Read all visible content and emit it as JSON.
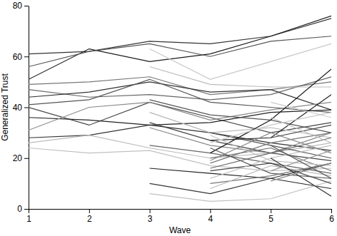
{
  "chart_data": {
    "type": "line",
    "x_label": "Wave",
    "y_label": "Generalized Trust",
    "x": [
      1,
      2,
      3,
      4,
      5,
      6
    ],
    "xlim": [
      1,
      6
    ],
    "xticks": [
      1,
      2,
      3,
      4,
      5,
      6
    ],
    "ylim": [
      0,
      80
    ],
    "yticks": [
      0,
      20,
      40,
      60,
      80
    ],
    "grid": false,
    "series": [
      {
        "color": "#333333",
        "values": [
          61,
          62,
          66,
          65,
          68,
          75
        ]
      },
      {
        "color": "#1a1a1a",
        "values": [
          51,
          63,
          58,
          61,
          68,
          76
        ]
      },
      {
        "color": "#555555",
        "values": [
          56,
          62,
          65,
          60,
          66,
          68
        ]
      },
      {
        "color": "#777777",
        "values": [
          49,
          50,
          52,
          45,
          47,
          50
        ]
      },
      {
        "color": "#666666",
        "values": [
          47,
          44,
          45,
          43,
          45,
          52
        ]
      },
      {
        "color": "#333333",
        "values": [
          44,
          46,
          50,
          46,
          47,
          39
        ]
      },
      {
        "color": "#555555",
        "values": [
          41,
          43,
          51,
          42,
          40,
          38
        ]
      },
      {
        "color": "#444444",
        "values": [
          40,
          33,
          42,
          36,
          30,
          34
        ]
      },
      {
        "color": "#222222",
        "values": [
          36,
          35,
          33,
          34,
          38,
          39
        ]
      },
      {
        "color": "#888888",
        "values": [
          31,
          40,
          42,
          35,
          39,
          42
        ]
      },
      {
        "color": "#333333",
        "values": [
          28,
          29,
          33,
          30,
          26,
          23
        ]
      },
      {
        "color": "#bbbbbb",
        "values": [
          26,
          29,
          24,
          20,
          22,
          26
        ]
      },
      {
        "color": "#c0c0c0",
        "values": [
          24,
          22,
          23,
          17,
          15,
          16
        ]
      },
      {
        "color": "#c8c8c8",
        "values": [
          null,
          null,
          63,
          51,
          58,
          65
        ]
      },
      {
        "color": "#bbbbbb",
        "values": [
          null,
          null,
          56,
          49,
          48,
          48
        ]
      },
      {
        "color": "#555555",
        "values": [
          null,
          null,
          43,
          37,
          35,
          30
        ]
      },
      {
        "color": "#b5b5b5",
        "values": [
          null,
          null,
          38,
          30,
          32,
          28
        ]
      },
      {
        "color": "#444444",
        "values": [
          null,
          null,
          34,
          27,
          22,
          19
        ]
      },
      {
        "color": "#666666",
        "values": [
          null,
          null,
          25,
          22,
          18,
          14
        ]
      },
      {
        "color": "#222222",
        "values": [
          null,
          null,
          16,
          14,
          12,
          8
        ]
      },
      {
        "color": "#333333",
        "values": [
          null,
          null,
          10,
          6,
          12,
          18
        ]
      },
      {
        "color": "#c0c0c0",
        "values": [
          null,
          null,
          6,
          3,
          4,
          11
        ]
      },
      {
        "color": "#888888",
        "values": [
          null,
          null,
          32,
          25,
          22,
          30
        ]
      },
      {
        "color": "#555555",
        "values": [
          null,
          null,
          null,
          30,
          25,
          20
        ]
      },
      {
        "color": "#222222",
        "values": [
          null,
          null,
          null,
          27,
          28,
          45
        ]
      },
      {
        "color": "#1a1a1a",
        "values": [
          null,
          null,
          null,
          22,
          35,
          55
        ]
      },
      {
        "color": "#666666",
        "values": [
          null,
          null,
          null,
          20,
          24,
          15
        ]
      },
      {
        "color": "#777777",
        "values": [
          null,
          null,
          null,
          18,
          26,
          30
        ]
      },
      {
        "color": "#444444",
        "values": [
          null,
          null,
          null,
          15,
          18,
          10
        ]
      },
      {
        "color": "#bbbbbb",
        "values": [
          null,
          null,
          null,
          12,
          20,
          25
        ]
      },
      {
        "color": "#555555",
        "values": [
          null,
          null,
          null,
          24,
          14,
          12
        ]
      },
      {
        "color": "#c0c0c0",
        "values": [
          null,
          null,
          null,
          29,
          19,
          17
        ]
      },
      {
        "color": "#888888",
        "values": [
          null,
          null,
          null,
          19,
          30,
          22
        ]
      },
      {
        "color": "#777777",
        "values": [
          null,
          null,
          null,
          10,
          13,
          18
        ]
      },
      {
        "color": "#c8c8c8",
        "values": [
          null,
          null,
          null,
          26,
          33,
          38
        ]
      },
      {
        "color": "#666666",
        "values": [
          null,
          null,
          null,
          16,
          22,
          28
        ]
      },
      {
        "color": "#bbbbbb",
        "values": [
          null,
          null,
          null,
          8,
          17,
          13
        ]
      },
      {
        "color": "#444444",
        "values": [
          null,
          null,
          null,
          null,
          28,
          33
        ]
      },
      {
        "color": "#333333",
        "values": [
          null,
          null,
          null,
          null,
          20,
          5
        ]
      },
      {
        "color": "#999999",
        "values": [
          null,
          null,
          null,
          null,
          15,
          23
        ]
      },
      {
        "color": "#555555",
        "values": [
          null,
          null,
          null,
          null,
          25,
          12
        ]
      },
      {
        "color": "#c0c0c0",
        "values": [
          null,
          null,
          null,
          null,
          36,
          26
        ]
      },
      {
        "color": "#888888",
        "values": [
          null,
          null,
          null,
          null,
          11,
          18
        ]
      },
      {
        "color": "#c8c8c8",
        "values": [
          null,
          null,
          null,
          null,
          42,
          36
        ]
      }
    ]
  }
}
